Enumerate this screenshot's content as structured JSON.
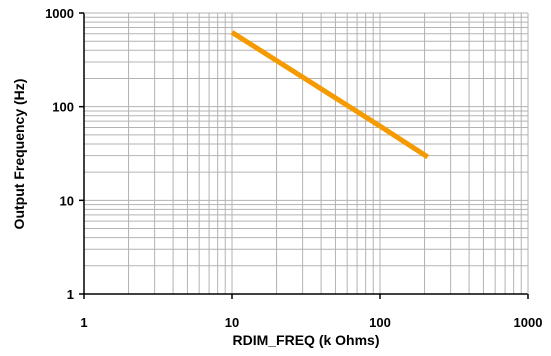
{
  "chart_data": {
    "type": "line",
    "title": "",
    "xlabel": "RDIM_FREQ (k Ohms)",
    "ylabel": "Output Frequency (Hz)",
    "xscale": "log",
    "yscale": "log",
    "xlim": [
      1,
      1000
    ],
    "ylim": [
      1,
      1000
    ],
    "grid": true,
    "legend": "none",
    "xticks": [
      "1",
      "10",
      "100",
      "1000"
    ],
    "yticks": [
      "1",
      "10",
      "100",
      "1000"
    ],
    "series": [
      {
        "color": "#f59a00",
        "x": [
          10,
          20,
          50,
          100,
          210
        ],
        "y": [
          620,
          310,
          124,
          62,
          29
        ]
      }
    ]
  },
  "colors": {
    "grid": "#b3b3b3",
    "axis": "#000000",
    "line": "#f59a00"
  }
}
